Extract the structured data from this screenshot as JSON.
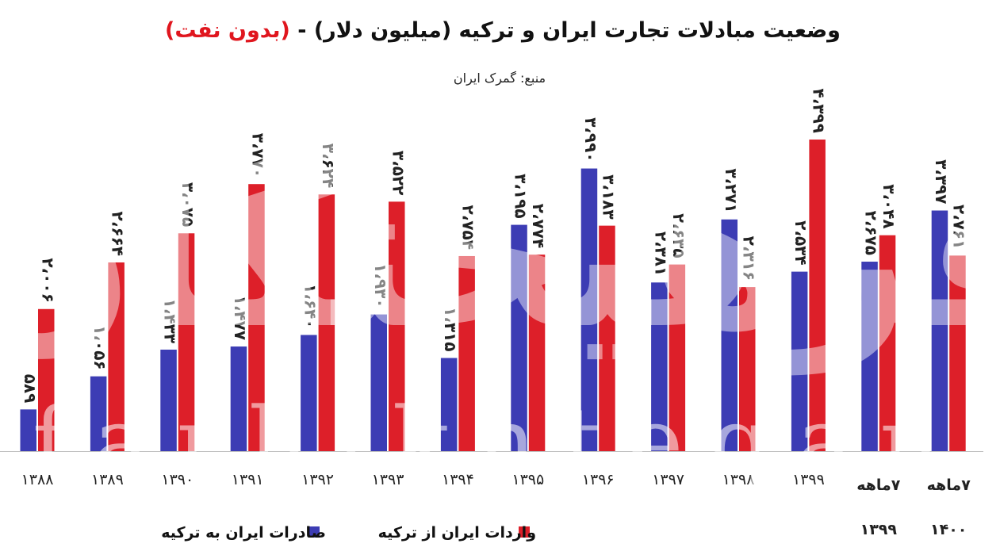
{
  "title_main": "وضعیت مبادلات تجارت ایران و ترکیه (میلیون دلار) - ",
  "title_highlight": "(بدون نفت)",
  "source": "منبع: گمرک ایران",
  "watermark": "farhikhtegan",
  "watermark_fa": "فرهیختگان",
  "colors": {
    "exports": "#3c3cb4",
    "imports": "#dd1f29",
    "title_highlight": "#e0161e"
  },
  "chart_data": {
    "type": "bar",
    "categories": [
      "۱۳۸۸",
      "۱۳۸۹",
      "۱۳۹۰",
      "۱۳۹۱",
      "۱۳۹۲",
      "۱۳۹۳",
      "۱۳۹۴",
      "۱۳۹۵",
      "۱۳۹۶",
      "۱۳۹۷",
      "۱۳۹۸",
      "۱۳۹۹",
      "۷ماهه ۱۳۹۹",
      "۷ماهه ۱۴۰۰"
    ],
    "category_lines": [
      [
        "۱۳۸۸"
      ],
      [
        "۱۳۸۹"
      ],
      [
        "۱۳۹۰"
      ],
      [
        "۱۳۹۱"
      ],
      [
        "۱۳۹۲"
      ],
      [
        "۱۳۹۳"
      ],
      [
        "۱۳۹۴"
      ],
      [
        "۱۳۹۵"
      ],
      [
        "۱۳۹۶"
      ],
      [
        "۱۳۹۷"
      ],
      [
        "۱۳۹۸"
      ],
      [
        "۱۳۹۹"
      ],
      [
        "۷ماهه",
        "۱۳۹۹"
      ],
      [
        "۷ماهه",
        "۱۴۰۰"
      ]
    ],
    "series": [
      {
        "name": "صادرات ایران به ترکیه",
        "values": [
          589,
          1056,
          1433,
          1477,
          1640,
          1930,
          1315,
          3195,
          3990,
          2381,
          3271,
          2534,
          2675,
          3397
        ],
        "labels": [
          "۵۸۹",
          "۱،۰۵۶",
          "۱،۴۳۳",
          "۱،۴۷۷",
          "۱،۶۴۰",
          "۱،۹۳۰",
          "۱،۳۱۵",
          "۳،۱۹۵",
          "۳،۹۹۰",
          "۲،۳۸۱",
          "۳،۲۷۱",
          "۲،۵۳۴",
          "۲،۶۷۵",
          "۳،۳۹۷"
        ]
      },
      {
        "name": "واردات ایران از ترکیه",
        "values": [
          2006,
          2664,
          3075,
          3770,
          3624,
          3522,
          2754,
          2774,
          3183,
          2635,
          2316,
          4399,
          3048,
          2761
        ],
        "labels": [
          "۲،۰۰۶",
          "۲،۶۶۴",
          "۳،۰۷۵",
          "۳،۷۷۰",
          "۳،۶۲۴",
          "۳،۵۲۲",
          "۲،۷۵۴",
          "۲،۷۷۴",
          "۳،۱۸۳",
          "۲،۶۳۵",
          "۲،۳۱۶",
          "۴،۳۹۹",
          "۳،۰۴۸",
          "۲،۷۶۱"
        ]
      }
    ],
    "ylim": [
      0,
      5000
    ],
    "grid": false,
    "legend_position": "bottom"
  }
}
